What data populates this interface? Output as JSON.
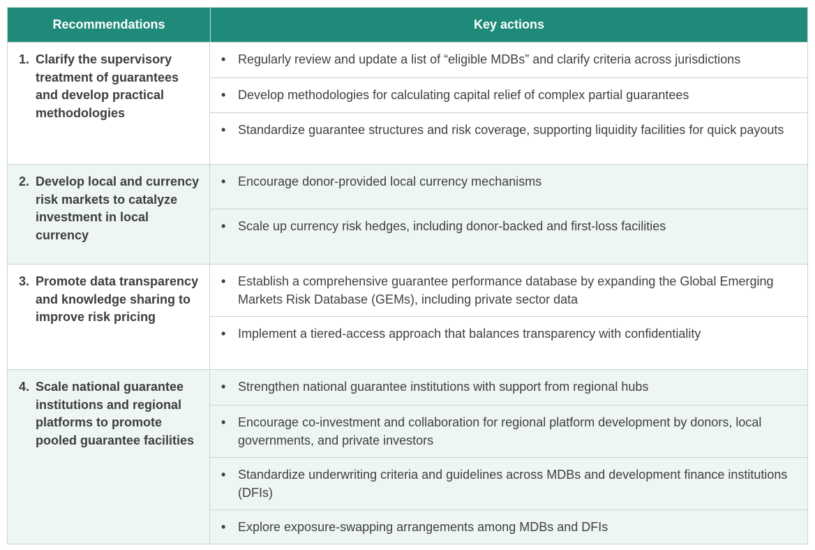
{
  "header": {
    "recommendations_label": "Recommendations",
    "key_actions_label": "Key actions"
  },
  "rows": [
    {
      "number": "1.",
      "recommendation": "Clarify the supervisory treatment of guarantees and develop practical methodologies",
      "actions": [
        "Regularly review and update a list of “eligible MDBs” and clarify criteria across jurisdictions",
        "Develop methodologies for calculating capital relief of complex partial guarantees",
        "Standardize guarantee structures and risk coverage, supporting liquidity facilities for quick payouts"
      ]
    },
    {
      "number": "2.",
      "recommendation": "Develop local and currency risk markets to catalyze investment in local currency",
      "actions": [
        "Encourage donor-provided local currency mechanisms",
        "Scale up currency risk hedges, including donor-backed and first-loss facilities"
      ]
    },
    {
      "number": "3.",
      "recommendation": "Promote data transparency and knowledge sharing to improve risk pricing",
      "actions": [
        "Establish a comprehensive guarantee performance database by expanding the Global Emerging Markets Risk Database (GEMs), including private sector data",
        "Implement a tiered-access approach that balances transparency with confidentiality"
      ]
    },
    {
      "number": "4.",
      "recommendation": "Scale national guarantee institutions and regional platforms to promote pooled guarantee facilities",
      "actions": [
        "Strengthen national guarantee institutions with support from regional hubs",
        "Encourage co-investment and collaboration for regional platform development by donors, local governments, and private investors",
        "Standardize underwriting criteria and guidelines across MDBs and development finance institutions (DFIs)",
        "Explore exposure-swapping arrangements among MDBs and DFIs"
      ]
    }
  ]
}
